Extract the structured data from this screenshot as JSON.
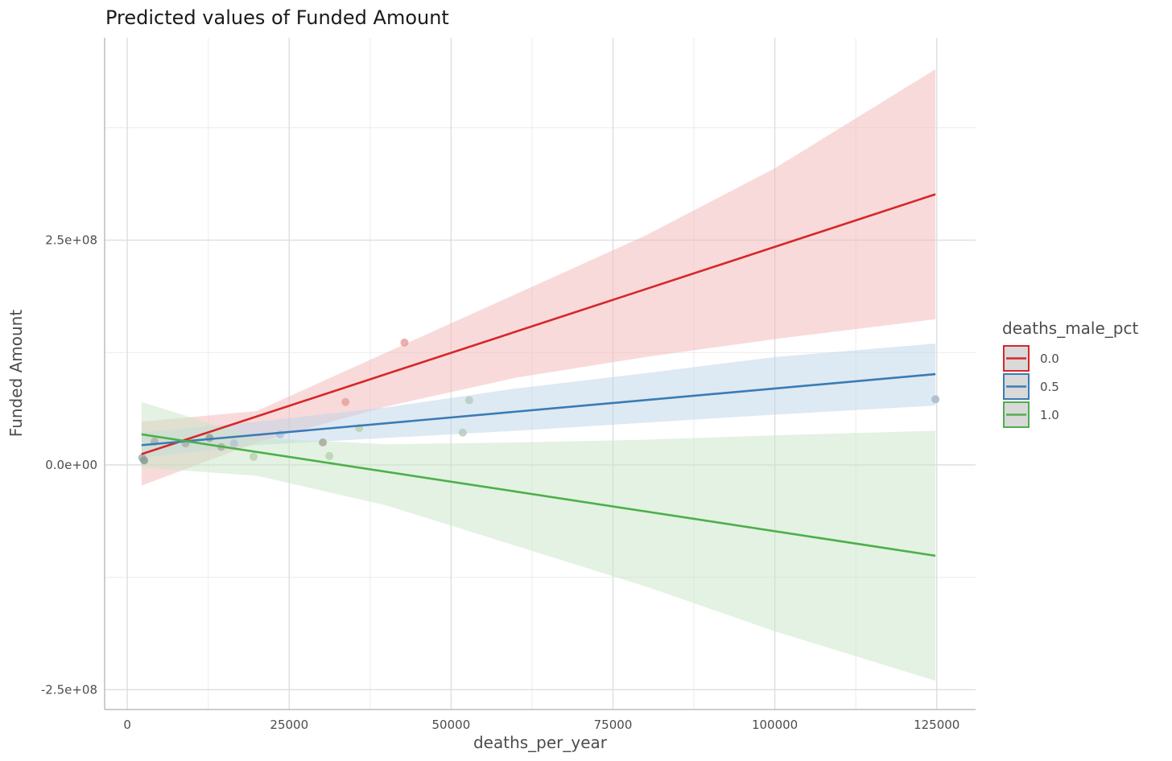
{
  "chart_data": {
    "type": "line",
    "title": "Predicted values of Funded Amount",
    "xlabel": "deaths_per_year",
    "ylabel": "Funded Amount",
    "xlim": [
      -3500,
      131000
    ],
    "ylim": [
      -272000000,
      475000000
    ],
    "x_ticks": [
      0,
      25000,
      50000,
      75000,
      100000,
      125000
    ],
    "x_tick_labels": [
      "0",
      "25000",
      "50000",
      "75000",
      "100000",
      "125000"
    ],
    "y_ticks": [
      -250000000,
      0,
      250000000
    ],
    "y_tick_labels": [
      "-2.5e+08",
      "0.0e+00",
      "2.5e+08"
    ],
    "grid": true,
    "legend": {
      "title": "deaths_male_pct",
      "position": "right"
    },
    "series": [
      {
        "name": "0.0",
        "color": "#d62728",
        "fill_color": "#f4b6b6",
        "line": [
          [
            2200,
            12000000
          ],
          [
            124800,
            301000000
          ]
        ],
        "ci": [
          [
            2200,
            -23000000,
            48000000
          ],
          [
            20000,
            25000000,
            60000000
          ],
          [
            40000,
            65000000,
            125000000
          ],
          [
            60000,
            97000000,
            190000000
          ],
          [
            80000,
            120000000,
            255000000
          ],
          [
            100000,
            140000000,
            330000000
          ],
          [
            124800,
            162000000,
            440000000
          ]
        ]
      },
      {
        "name": "0.5",
        "color": "#3a7bb5",
        "fill_color": "#bcd3e8",
        "line": [
          [
            2200,
            22000000
          ],
          [
            124800,
            101000000
          ]
        ],
        "ci": [
          [
            2200,
            8000000,
            36000000
          ],
          [
            20000,
            22000000,
            48000000
          ],
          [
            40000,
            30000000,
            64000000
          ],
          [
            60000,
            38000000,
            85000000
          ],
          [
            80000,
            47000000,
            102000000
          ],
          [
            100000,
            56000000,
            120000000
          ],
          [
            124800,
            66000000,
            135000000
          ]
        ]
      },
      {
        "name": "1.0",
        "color": "#4daf4a",
        "fill_color": "#c7e6c5",
        "line": [
          [
            2200,
            34000000
          ],
          [
            124800,
            -101000000
          ]
        ],
        "ci": [
          [
            2200,
            -3000000,
            70000000
          ],
          [
            20000,
            -12000000,
            30000000
          ],
          [
            40000,
            -45000000,
            23000000
          ],
          [
            60000,
            -90000000,
            25000000
          ],
          [
            80000,
            -135000000,
            28000000
          ],
          [
            100000,
            -185000000,
            33000000
          ],
          [
            124800,
            -240000000,
            38000000
          ]
        ]
      }
    ],
    "points": [
      {
        "x": 42800,
        "y": 136000000,
        "color": "#e8a0a0"
      },
      {
        "x": 33700,
        "y": 70000000,
        "color": "#e8a0a0"
      },
      {
        "x": 52800,
        "y": 72000000,
        "color": "#b7ccc0"
      },
      {
        "x": 124800,
        "y": 73000000,
        "color": "#a9b9c6"
      },
      {
        "x": 35800,
        "y": 41000000,
        "color": "#b9d4b0"
      },
      {
        "x": 51800,
        "y": 36000000,
        "color": "#b7ccc0"
      },
      {
        "x": 23600,
        "y": 34000000,
        "color": "#b3c6d6"
      },
      {
        "x": 30200,
        "y": 25000000,
        "color": "#a8a89a"
      },
      {
        "x": 31200,
        "y": 10000000,
        "color": "#b9d4b0"
      },
      {
        "x": 19500,
        "y": 9000000,
        "color": "#b9d4b0"
      },
      {
        "x": 14500,
        "y": 20000000,
        "color": "#a8b4a8"
      },
      {
        "x": 16500,
        "y": 24000000,
        "color": "#b3c6d6"
      },
      {
        "x": 12700,
        "y": 30000000,
        "color": "#8fa29a"
      },
      {
        "x": 9000,
        "y": 24000000,
        "color": "#a8b4a8"
      },
      {
        "x": 4200,
        "y": 26000000,
        "color": "#a8b4a8"
      },
      {
        "x": 2300,
        "y": 8000000,
        "color": "#9fb3b0"
      },
      {
        "x": 2600,
        "y": 5000000,
        "color": "#8a9a96"
      }
    ]
  }
}
